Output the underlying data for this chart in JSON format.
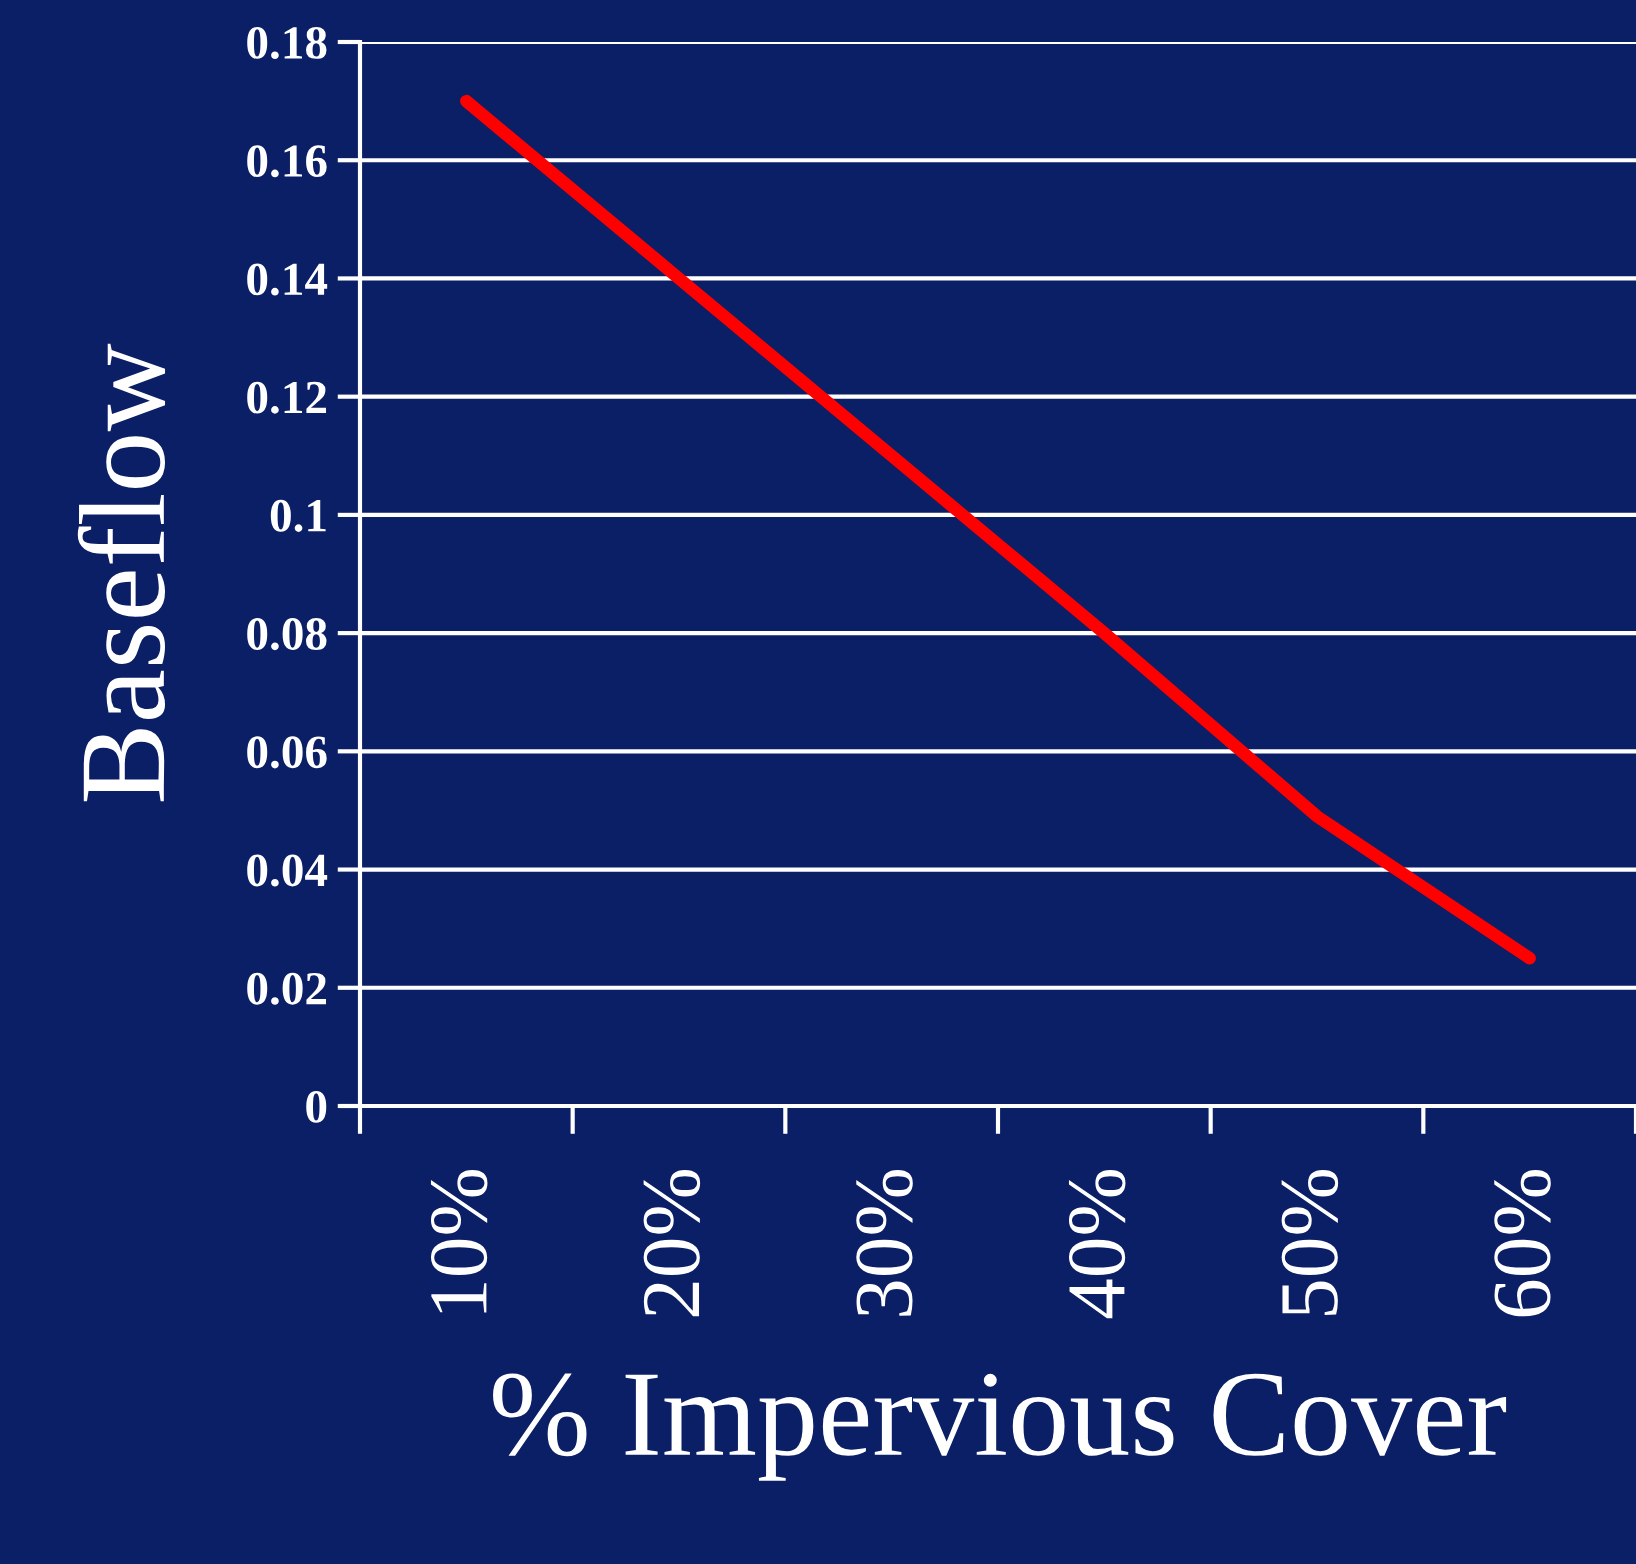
{
  "chart_data": {
    "type": "line",
    "xlabel": "% Impervious Cover",
    "ylabel": "Baseflow",
    "categories": [
      "10%",
      "20%",
      "30%",
      "40%",
      "50%",
      "60%"
    ],
    "series": [
      {
        "color": "#ff0000",
        "values": [
          0.17,
          0.14,
          0.11,
          0.08,
          0.049,
          0.025
        ]
      }
    ],
    "ylim": [
      0,
      0.18
    ],
    "yticks": [
      {
        "value": 0,
        "label": "0"
      },
      0.02,
      0.04,
      0.06,
      0.08,
      {
        "value": 0.1,
        "label": "0.1"
      },
      0.12,
      0.14,
      0.16,
      0.18
    ],
    "grid": "y",
    "marker": "none",
    "line_style": "solid",
    "legend": false
  }
}
